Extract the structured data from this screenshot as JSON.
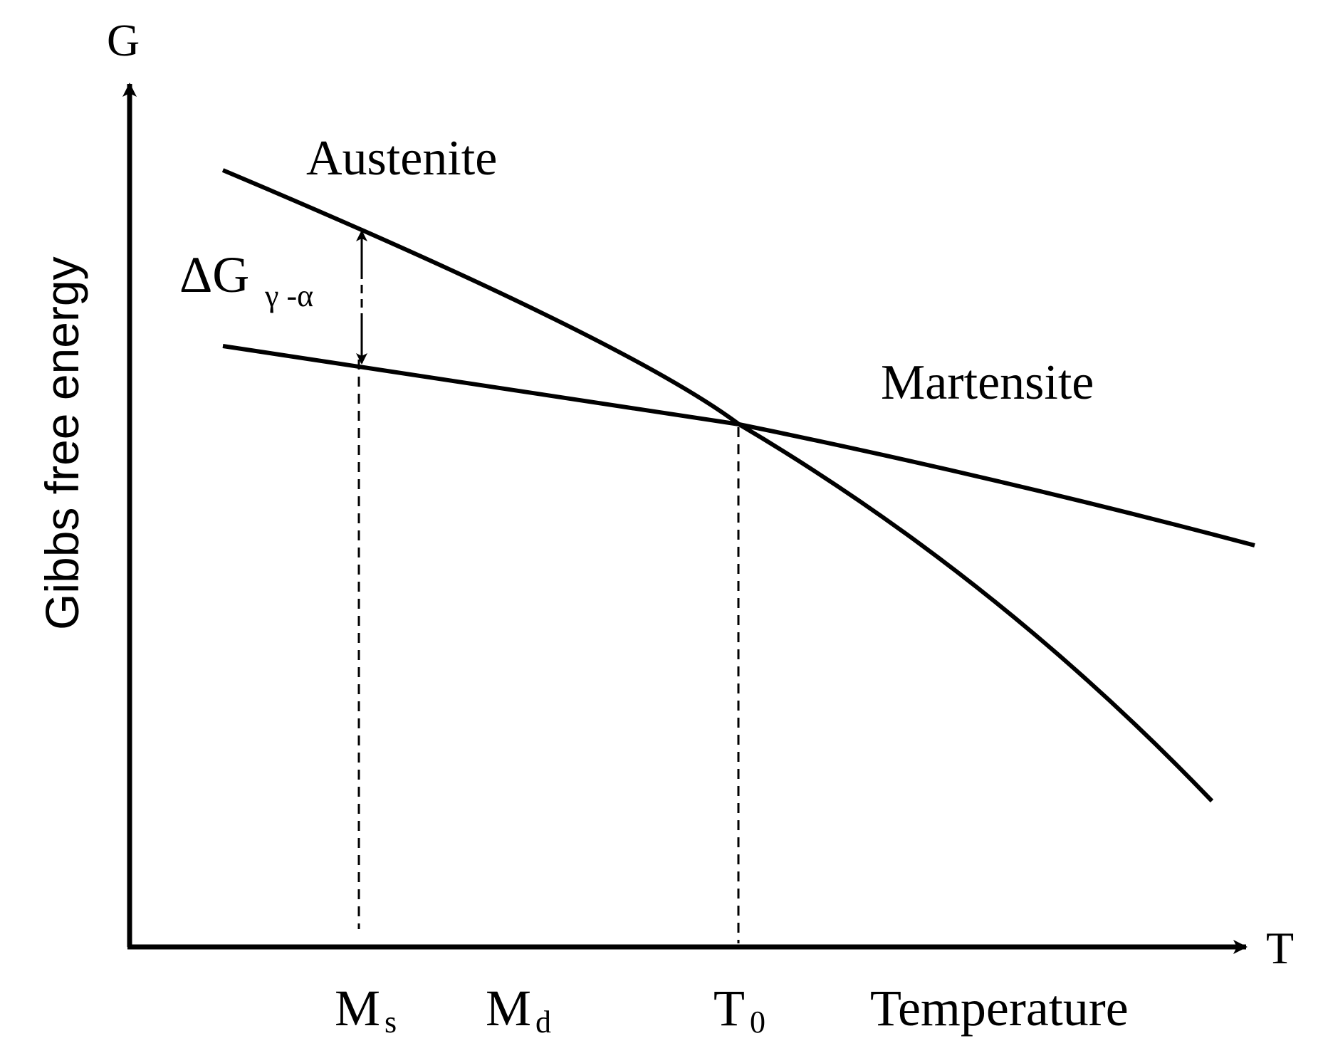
{
  "diagram": {
    "type": "gibbs-free-energy-vs-temperature",
    "axis": {
      "y_symbol": "G",
      "x_symbol": "T",
      "y_label": "Gibbs free energy",
      "x_label": "Temperature"
    },
    "curves": [
      {
        "name": "Austenite",
        "shape": "concave-down, steeper slope"
      },
      {
        "name": "Martensite",
        "shape": "near-linear, shallower slope"
      }
    ],
    "intersection_label": "T",
    "intersection_sub": "0",
    "markers": [
      {
        "main": "M",
        "sub": "s"
      },
      {
        "main": "M",
        "sub": "d"
      },
      {
        "main": "T",
        "sub": "0"
      }
    ],
    "delta_g": {
      "main": "ΔG",
      "sub": "γ -α"
    },
    "colors": {
      "line": "#000000",
      "background": "#ffffff"
    }
  }
}
